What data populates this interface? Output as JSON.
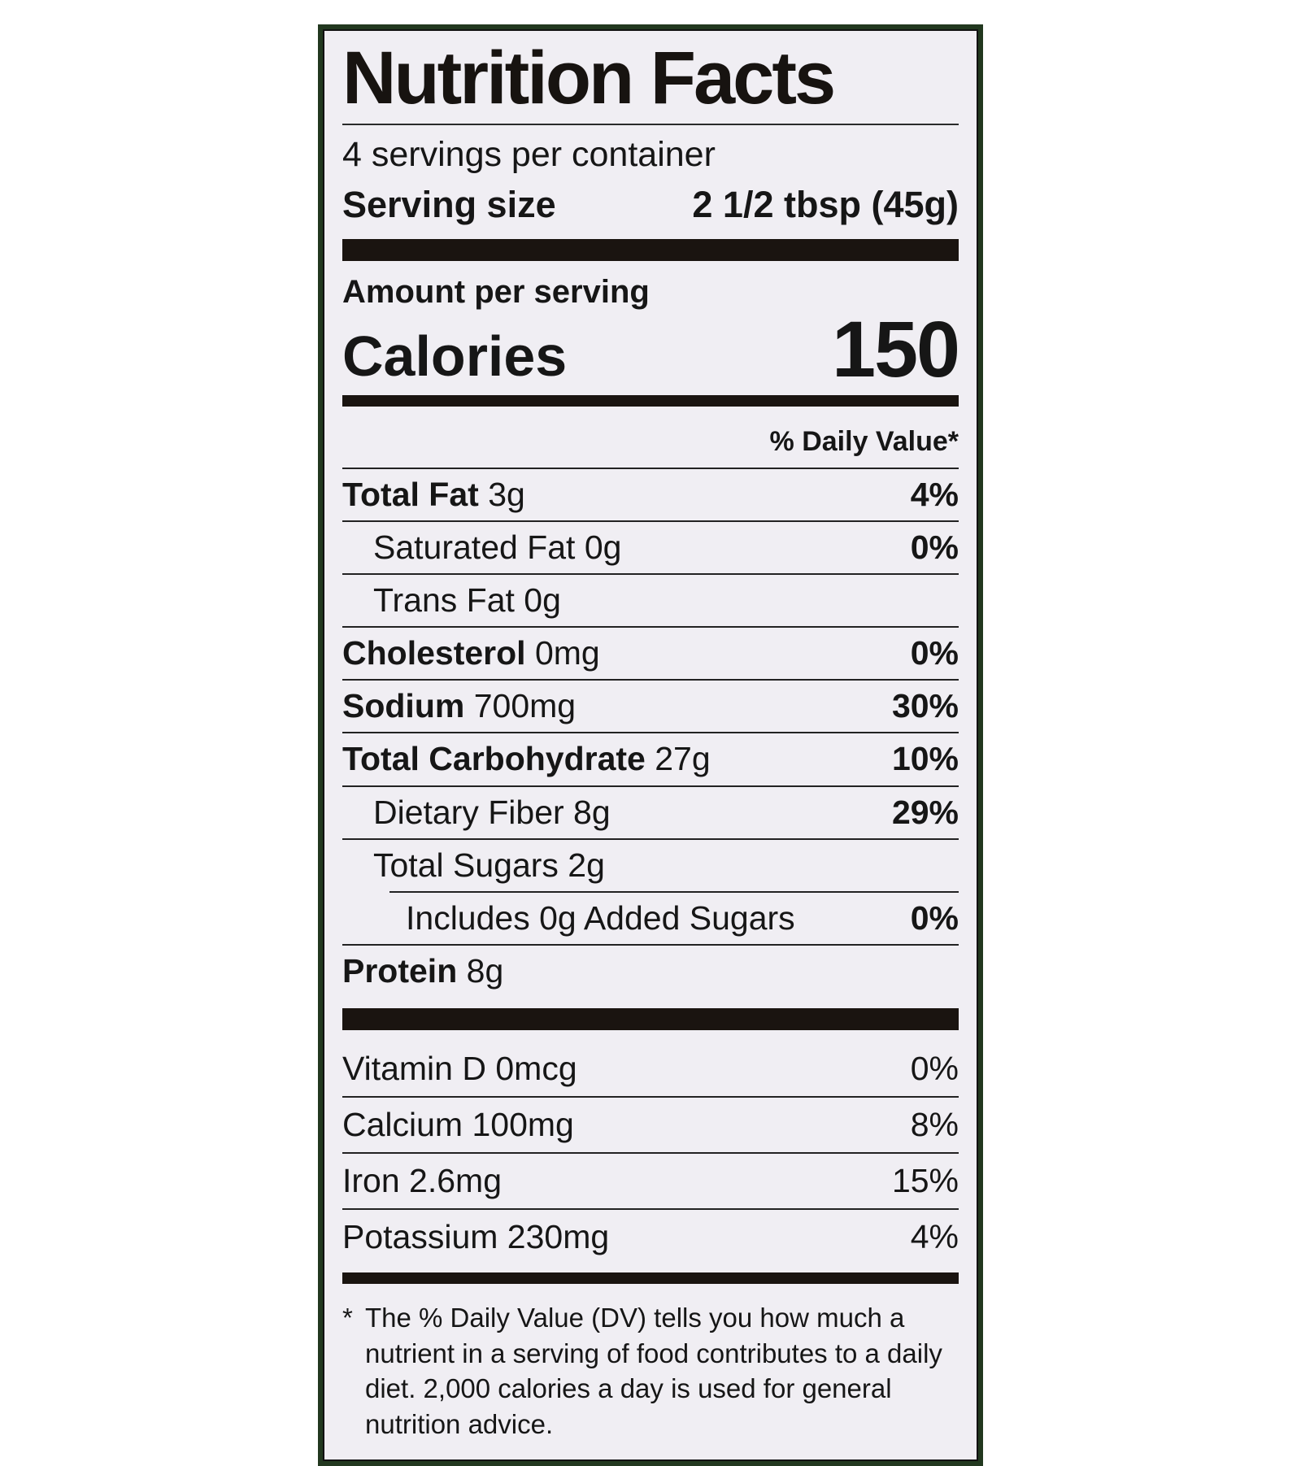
{
  "label": {
    "title": "Nutrition Facts",
    "servings_per_container": "4 servings per container",
    "serving_size_label": "Serving size",
    "serving_size_value": "2 1/2 tbsp (45g)",
    "amount_per_serving": "Amount per serving",
    "calories_label": "Calories",
    "calories_value": "150",
    "daily_value_header": "% Daily Value*",
    "nutrients": [
      {
        "bold": "Total Fat",
        "rest": " 3g",
        "dv": "4%"
      },
      {
        "bold": "",
        "rest": "Saturated Fat 0g",
        "dv": "0%"
      },
      {
        "bold": "",
        "rest": "Trans Fat 0g",
        "dv": ""
      },
      {
        "bold": "Cholesterol",
        "rest": " 0mg",
        "dv": "0%"
      },
      {
        "bold": "Sodium",
        "rest": " 700mg",
        "dv": "30%"
      },
      {
        "bold": "Total Carbohydrate",
        "rest": " 27g",
        "dv": "10%"
      },
      {
        "bold": "",
        "rest": "Dietary Fiber 8g",
        "dv": "29%"
      },
      {
        "bold": "",
        "rest": "Total Sugars 2g",
        "dv": ""
      },
      {
        "bold": "",
        "rest": "Includes 0g Added Sugars",
        "dv": "0%"
      },
      {
        "bold": "Protein",
        "rest": " 8g",
        "dv": ""
      }
    ],
    "vitamins": [
      {
        "label": "Vitamin D 0mcg",
        "dv": "0%"
      },
      {
        "label": "Calcium 100mg",
        "dv": "8%"
      },
      {
        "label": "Iron 2.6mg",
        "dv": "15%"
      },
      {
        "label": "Potassium 230mg",
        "dv": "4%"
      }
    ],
    "footnote_marker": "*",
    "footnote": "The % Daily Value (DV) tells you how much a nutrient in a serving of food contributes to a daily diet. 2,000 calories a day is used for general nutrition advice."
  },
  "colors": {
    "border_green": "#22381f",
    "label_background": "#f0eef3",
    "ink": "#1a1410",
    "page_background": "#ffffff"
  }
}
